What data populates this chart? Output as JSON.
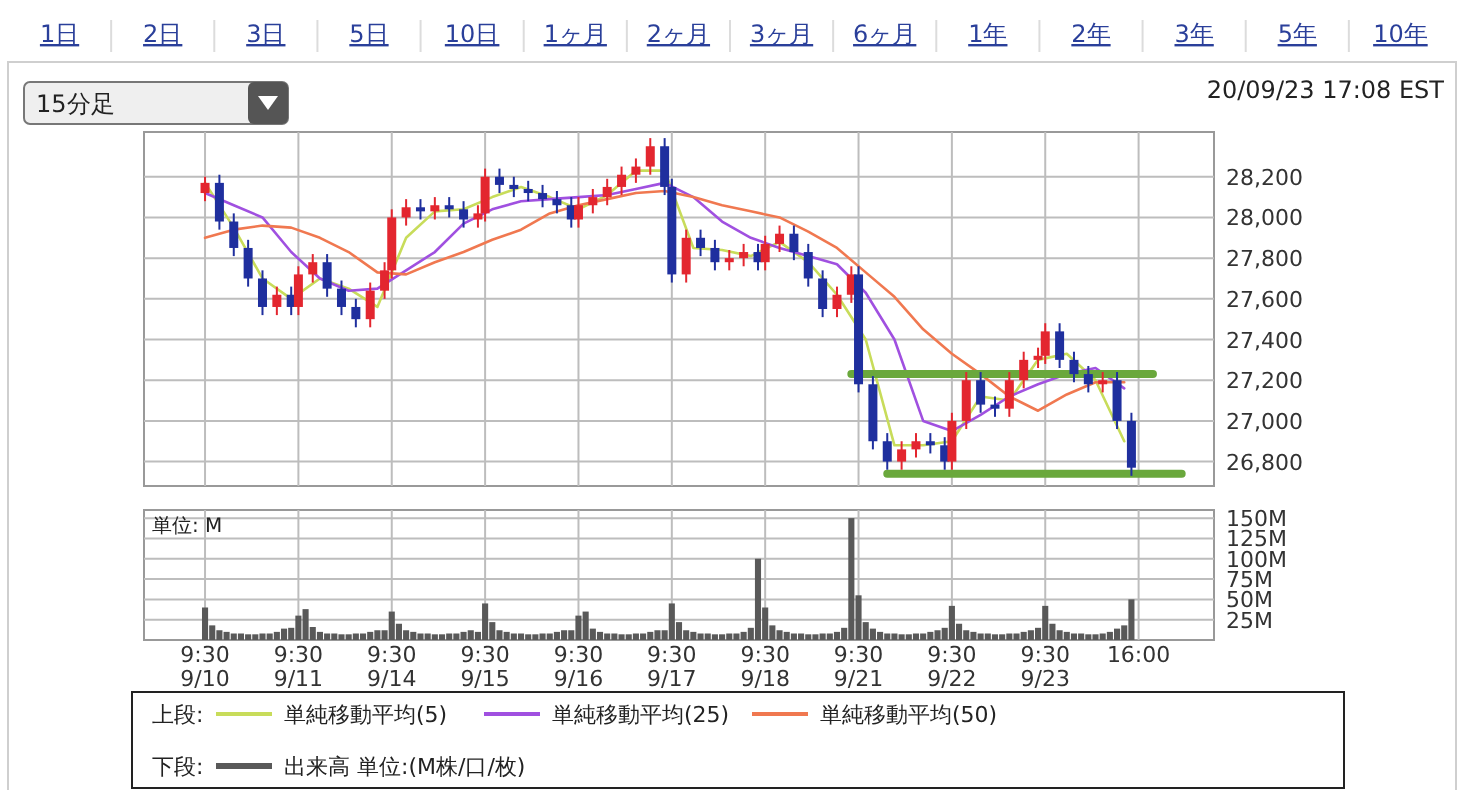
{
  "chart_data": [
    {
      "type": "other",
      "annotations": [
        "1日",
        "2日",
        "3日",
        "5日",
        "10日",
        "1ヶ月",
        "2ヶ月",
        "3ヶ月",
        "6ヶ月",
        "1年",
        "2年",
        "3年",
        "5年",
        "10年",
        "15分足",
        "20/09/23 17:08 EST"
      ]
    },
    {
      "type": "candlestick",
      "ylim": [
        26680,
        28420
      ],
      "grid": true,
      "tick_labels": "y",
      "legend": "bottom",
      "legend_title": "上段:",
      "categories": [
        null,
        null,
        null,
        null,
        null,
        null,
        null,
        null,
        null,
        null,
        null,
        null,
        null,
        null,
        null,
        null,
        null,
        null,
        null,
        null,
        null,
        null,
        null,
        null,
        null,
        null,
        null,
        null,
        null,
        null,
        null,
        null,
        null,
        null,
        null,
        null,
        null,
        null,
        null,
        null,
        null,
        null,
        null,
        null,
        null,
        null,
        null,
        null,
        null,
        null,
        null,
        null,
        null,
        null,
        null,
        null,
        null,
        null,
        null,
        null,
        null,
        null,
        null,
        null,
        null,
        null,
        null,
        null,
        null,
        null,
        null,
        null,
        null,
        null,
        null,
        null,
        null,
        null,
        null,
        null,
        null,
        null,
        null,
        null,
        null,
        null,
        null,
        null,
        null,
        null,
        null,
        null,
        null,
        null,
        null,
        null,
        null,
        null,
        null,
        null,
        null,
        null,
        null,
        null,
        null,
        null,
        null,
        null,
        null,
        null,
        null,
        null,
        null,
        null,
        null,
        null,
        null,
        null,
        null,
        null,
        null,
        null,
        null,
        null,
        null,
        null,
        null,
        null,
        null,
        null,
        null,
        null,
        null,
        null,
        null,
        null,
        null,
        null,
        null,
        null,
        null,
        null,
        null,
        null,
        null,
        null,
        null,
        null,
        null
      ],
      "yticks": [
        {
          "value": 26800,
          "label": "26,800"
        },
        {
          "value": 27000,
          "label": "27,000"
        },
        {
          "value": 27200,
          "label": "27,200"
        },
        {
          "value": 27400,
          "label": "27,400"
        },
        {
          "value": 27600,
          "label": "27,600"
        },
        {
          "value": 27800,
          "label": "27,800"
        },
        {
          "value": 28000,
          "label": "28,000"
        },
        {
          "value": 28200,
          "label": "28,200"
        }
      ],
      "ohlc": [
        null,
        null,
        null,
        null,
        null,
        null,
        null,
        null,
        [
          28120,
          28200,
          28080,
          28170
        ],
        null,
        [
          28170,
          28210,
          27940,
          27980
        ],
        null,
        [
          27980,
          28020,
          27810,
          27850
        ],
        null,
        [
          27850,
          27890,
          27660,
          27700
        ],
        null,
        [
          27700,
          27740,
          27520,
          27560
        ],
        null,
        [
          27560,
          27660,
          27520,
          27620
        ],
        null,
        [
          27620,
          27660,
          27520,
          27560
        ],
        [
          27560,
          27760,
          27520,
          27720
        ],
        null,
        [
          27720,
          27820,
          27680,
          27780
        ],
        null,
        [
          27780,
          27820,
          27610,
          27650
        ],
        null,
        [
          27650,
          27690,
          27520,
          27560
        ],
        null,
        [
          27560,
          27600,
          27460,
          27500
        ],
        null,
        [
          27500,
          27680,
          27460,
          27640
        ],
        null,
        [
          27640,
          27780,
          27600,
          27740
        ],
        [
          27740,
          28040,
          27700,
          28000
        ],
        null,
        [
          28000,
          28090,
          27960,
          28050
        ],
        null,
        [
          28050,
          28090,
          27990,
          28030
        ],
        null,
        [
          28030,
          28100,
          27990,
          28060
        ],
        null,
        [
          28060,
          28100,
          28000,
          28040
        ],
        null,
        [
          28040,
          28080,
          27950,
          27990
        ],
        null,
        [
          27990,
          28060,
          27950,
          28020
        ],
        [
          28020,
          28240,
          27980,
          28200
        ],
        null,
        [
          28200,
          28240,
          28120,
          28160
        ],
        null,
        [
          28160,
          28200,
          28100,
          28140
        ],
        null,
        [
          28140,
          28180,
          28080,
          28120
        ],
        null,
        [
          28120,
          28160,
          28050,
          28090
        ],
        null,
        [
          28090,
          28130,
          28020,
          28060
        ],
        null,
        [
          28060,
          28100,
          27950,
          27990
        ],
        [
          27990,
          28100,
          27950,
          28060
        ],
        null,
        [
          28060,
          28140,
          28020,
          28100
        ],
        null,
        [
          28100,
          28190,
          28060,
          28150
        ],
        null,
        [
          28150,
          28250,
          28110,
          28210
        ],
        null,
        [
          28210,
          28290,
          28170,
          28250
        ],
        null,
        [
          28250,
          28390,
          28210,
          28350
        ],
        null,
        [
          28350,
          28390,
          28110,
          28150
        ],
        [
          28150,
          28190,
          27680,
          27720
        ],
        null,
        [
          27720,
          27940,
          27680,
          27900
        ],
        null,
        [
          27900,
          27940,
          27810,
          27850
        ],
        null,
        [
          27850,
          27890,
          27740,
          27780
        ],
        null,
        [
          27780,
          27840,
          27740,
          27800
        ],
        null,
        [
          27800,
          27870,
          27760,
          27830
        ],
        null,
        [
          27830,
          27870,
          27740,
          27780
        ],
        [
          27780,
          27910,
          27740,
          27870
        ],
        null,
        [
          27870,
          27960,
          27830,
          27920
        ],
        null,
        [
          27920,
          27960,
          27790,
          27830
        ],
        null,
        [
          27830,
          27870,
          27660,
          27700
        ],
        null,
        [
          27700,
          27740,
          27510,
          27550
        ],
        null,
        [
          27550,
          27660,
          27510,
          27620
        ],
        null,
        [
          27620,
          27760,
          27580,
          27720
        ],
        [
          27720,
          27760,
          27140,
          27180
        ],
        null,
        [
          27180,
          27220,
          26860,
          26900
        ],
        null,
        [
          26900,
          26940,
          26760,
          26800
        ],
        null,
        [
          26800,
          26900,
          26760,
          26860
        ],
        null,
        [
          26860,
          26940,
          26820,
          26900
        ],
        null,
        [
          26900,
          26940,
          26840,
          26880
        ],
        null,
        [
          26880,
          26920,
          26760,
          26800
        ],
        [
          26800,
          27040,
          26760,
          27000
        ],
        null,
        [
          27000,
          27240,
          26960,
          27200
        ],
        null,
        [
          27200,
          27240,
          27040,
          27080
        ],
        null,
        [
          27080,
          27120,
          27020,
          27060
        ],
        null,
        [
          27060,
          27240,
          27020,
          27200
        ],
        null,
        [
          27200,
          27340,
          27160,
          27300
        ],
        null,
        [
          27300,
          27360,
          27260,
          27320
        ],
        [
          27320,
          27480,
          27280,
          27440
        ],
        null,
        [
          27440,
          27480,
          27260,
          27300
        ],
        null,
        [
          27300,
          27340,
          27190,
          27230
        ],
        null,
        [
          27230,
          27270,
          27140,
          27180
        ],
        null,
        [
          27180,
          27240,
          27140,
          27200
        ],
        null,
        [
          27200,
          27240,
          26960,
          27000
        ],
        null,
        [
          27000,
          27040,
          26730,
          26770
        ],
        null,
        null,
        null,
        null,
        null,
        null,
        null,
        null,
        null,
        null,
        null
      ],
      "series": [
        {
          "name": "単純移動平均(5)",
          "type": "line",
          "color": "#c8dc5a",
          "values": [
            null,
            null,
            null,
            null,
            null,
            null,
            null,
            null,
            28170,
            null,
            null,
            null,
            27950,
            null,
            null,
            null,
            27700,
            null,
            null,
            null,
            27600,
            null,
            null,
            null,
            27700,
            null,
            null,
            null,
            27650,
            null,
            null,
            null,
            27560,
            null,
            null,
            null,
            27900,
            null,
            null,
            null,
            28030,
            null,
            null,
            null,
            28040,
            null,
            null,
            null,
            28100,
            null,
            null,
            null,
            28150,
            null,
            null,
            null,
            28100,
            null,
            null,
            null,
            28040,
            null,
            null,
            null,
            28110,
            null,
            null,
            null,
            28230,
            null,
            null,
            null,
            28230,
            null,
            null,
            null,
            27850,
            null,
            null,
            null,
            27840,
            null,
            null,
            null,
            27810,
            null,
            null,
            null,
            27880,
            null,
            null,
            null,
            27780,
            null,
            null,
            null,
            27620,
            null,
            null,
            null,
            27400,
            null,
            null,
            null,
            26880,
            null,
            null,
            null,
            26880,
            null,
            null,
            null,
            26900,
            null,
            null,
            null,
            27120,
            null,
            null,
            null,
            27100,
            null,
            null,
            null,
            27300,
            null,
            null,
            null,
            27330,
            null,
            null,
            null,
            27200,
            null,
            null,
            null,
            26900,
            null,
            null,
            null,
            null,
            null,
            null,
            null,
            null,
            null,
            null,
            null,
            null
          ]
        },
        {
          "name": "単純移動平均(25)",
          "type": "line",
          "color": "#a050e0",
          "values": [
            null,
            null,
            null,
            null,
            null,
            null,
            null,
            null,
            28120,
            null,
            null,
            null,
            28060,
            null,
            null,
            null,
            28000,
            null,
            null,
            null,
            27830,
            null,
            null,
            null,
            27700,
            null,
            null,
            null,
            27640,
            null,
            null,
            null,
            27650,
            null,
            null,
            null,
            27740,
            null,
            null,
            null,
            27830,
            null,
            null,
            null,
            27970,
            null,
            null,
            null,
            28040,
            null,
            null,
            null,
            28080,
            null,
            null,
            null,
            28090,
            null,
            null,
            null,
            28100,
            null,
            null,
            null,
            28110,
            null,
            null,
            null,
            28140,
            null,
            null,
            null,
            28170,
            null,
            null,
            null,
            28100,
            null,
            null,
            null,
            27980,
            null,
            null,
            null,
            27900,
            null,
            null,
            null,
            27850,
            null,
            null,
            null,
            27810,
            null,
            null,
            null,
            27770,
            null,
            null,
            null,
            27630,
            null,
            null,
            null,
            27400,
            null,
            null,
            null,
            27000,
            null,
            null,
            null,
            26950,
            null,
            null,
            null,
            27030,
            null,
            null,
            null,
            27120,
            null,
            null,
            null,
            27180,
            null,
            null,
            null,
            27230,
            null,
            null,
            null,
            27260,
            null,
            null,
            null,
            27160,
            null,
            null,
            null,
            null,
            null,
            null,
            null,
            null,
            null,
            null,
            null,
            null
          ]
        },
        {
          "name": "単純移動平均(50)",
          "type": "line",
          "color": "#f07850",
          "values": [
            null,
            null,
            null,
            null,
            null,
            null,
            null,
            null,
            27900,
            null,
            null,
            null,
            27940,
            null,
            null,
            null,
            27960,
            null,
            null,
            null,
            27950,
            null,
            null,
            null,
            27900,
            null,
            null,
            null,
            27830,
            null,
            null,
            null,
            27730,
            null,
            null,
            null,
            27720,
            null,
            null,
            null,
            27780,
            null,
            null,
            null,
            27830,
            null,
            null,
            null,
            27890,
            null,
            null,
            null,
            27940,
            null,
            null,
            null,
            28020,
            null,
            null,
            null,
            28060,
            null,
            null,
            null,
            28090,
            null,
            null,
            null,
            28120,
            null,
            null,
            null,
            28130,
            null,
            null,
            null,
            28100,
            null,
            null,
            null,
            28060,
            null,
            null,
            null,
            28030,
            null,
            null,
            null,
            28000,
            null,
            null,
            null,
            27930,
            null,
            null,
            null,
            27850,
            null,
            null,
            null,
            27730,
            null,
            null,
            null,
            27610,
            null,
            null,
            null,
            27450,
            null,
            null,
            null,
            27330,
            null,
            null,
            null,
            27230,
            null,
            null,
            null,
            27120,
            null,
            null,
            null,
            27050,
            null,
            null,
            null,
            27130,
            null,
            null,
            null,
            27190,
            null,
            null,
            null,
            27190,
            null,
            null,
            null,
            null,
            null,
            null,
            null,
            null,
            null,
            null,
            null,
            null
          ]
        },
        {
          "type": "line",
          "color": "#6aa83c",
          "values": [
            null,
            null,
            null,
            null,
            null,
            null,
            null,
            null,
            null,
            null,
            null,
            null,
            null,
            null,
            null,
            null,
            null,
            null,
            null,
            null,
            null,
            null,
            null,
            null,
            null,
            null,
            null,
            null,
            null,
            null,
            null,
            null,
            null,
            null,
            null,
            null,
            null,
            null,
            null,
            null,
            null,
            null,
            null,
            null,
            null,
            null,
            null,
            null,
            null,
            null,
            null,
            null,
            null,
            null,
            null,
            null,
            null,
            null,
            null,
            null,
            null,
            null,
            null,
            null,
            null,
            null,
            null,
            null,
            null,
            null,
            null,
            null,
            null,
            null,
            null,
            null,
            null,
            null,
            null,
            null,
            null,
            null,
            null,
            null,
            null,
            null,
            null,
            null,
            null,
            null,
            null,
            null,
            null,
            null,
            null,
            null,
            null,
            null,
            27230,
            null,
            null,
            null,
            null,
            null,
            null,
            null,
            null,
            null,
            null,
            null,
            null,
            null,
            null,
            null,
            null,
            null,
            null,
            null,
            null,
            null,
            null,
            null,
            null,
            null,
            null,
            null,
            null,
            null,
            null,
            null,
            null,
            null,
            null,
            null,
            null,
            null,
            null,
            null,
            null,
            null,
            27230,
            null,
            null,
            null,
            null,
            null,
            null,
            null,
            null
          ]
        },
        {
          "type": "line",
          "color": "#6aa83c",
          "values": [
            null,
            null,
            null,
            null,
            null,
            null,
            null,
            null,
            null,
            null,
            null,
            null,
            null,
            null,
            null,
            null,
            null,
            null,
            null,
            null,
            null,
            null,
            null,
            null,
            null,
            null,
            null,
            null,
            null,
            null,
            null,
            null,
            null,
            null,
            null,
            null,
            null,
            null,
            null,
            null,
            null,
            null,
            null,
            null,
            null,
            null,
            null,
            null,
            null,
            null,
            null,
            null,
            null,
            null,
            null,
            null,
            null,
            null,
            null,
            null,
            null,
            null,
            null,
            null,
            null,
            null,
            null,
            null,
            null,
            null,
            null,
            null,
            null,
            null,
            null,
            null,
            null,
            null,
            null,
            null,
            null,
            null,
            null,
            null,
            null,
            null,
            null,
            null,
            null,
            null,
            null,
            null,
            null,
            null,
            null,
            null,
            null,
            null,
            null,
            null,
            null,
            null,
            null,
            26740,
            null,
            null,
            null,
            null,
            null,
            null,
            null,
            null,
            null,
            null,
            null,
            null,
            null,
            null,
            null,
            null,
            null,
            null,
            null,
            null,
            null,
            null,
            null,
            null,
            null,
            null,
            null,
            null,
            null,
            null,
            null,
            null,
            null,
            null,
            null,
            null,
            null,
            null,
            null,
            null,
            26740,
            null,
            null,
            null,
            null
          ]
        }
      ]
    },
    {
      "type": "bar",
      "ylim": [
        0,
        160
      ],
      "grid": true,
      "legend": "bottom",
      "legend_title": "下段:",
      "annotations": [
        "単位: M"
      ],
      "categories": [
        null,
        null,
        null,
        null,
        null,
        null,
        null,
        null,
        "9:30\n9/10",
        null,
        null,
        null,
        null,
        null,
        null,
        null,
        null,
        null,
        null,
        null,
        null,
        "9:30\n9/11",
        null,
        null,
        null,
        null,
        null,
        null,
        null,
        null,
        null,
        null,
        null,
        null,
        "9:30\n9/14",
        null,
        null,
        null,
        null,
        null,
        null,
        null,
        null,
        null,
        null,
        null,
        null,
        "9:30\n9/15",
        null,
        null,
        null,
        null,
        null,
        null,
        null,
        null,
        null,
        null,
        null,
        null,
        "9:30\n9/16",
        null,
        null,
        null,
        null,
        null,
        null,
        null,
        null,
        null,
        null,
        null,
        null,
        "9:30\n9/17",
        null,
        null,
        null,
        null,
        null,
        null,
        null,
        null,
        null,
        null,
        null,
        null,
        "9:30\n9/18",
        null,
        null,
        null,
        null,
        null,
        null,
        null,
        null,
        null,
        null,
        null,
        null,
        "9:30\n9/21",
        null,
        null,
        null,
        null,
        null,
        null,
        null,
        null,
        null,
        null,
        null,
        null,
        "9:30\n9/22",
        null,
        null,
        null,
        null,
        null,
        null,
        null,
        null,
        null,
        null,
        null,
        null,
        "9:30\n9/23",
        null,
        null,
        null,
        null,
        null,
        null,
        null,
        null,
        null,
        null,
        null,
        null,
        "16:00",
        null,
        null,
        null,
        null,
        null,
        null,
        null,
        null,
        null,
        null
      ],
      "yticks": [
        {
          "value": 25,
          "label": "25M"
        },
        {
          "value": 50,
          "label": "50M"
        },
        {
          "value": 75,
          "label": "75M"
        },
        {
          "value": 100,
          "label": "100M"
        },
        {
          "value": 125,
          "label": "125M"
        },
        {
          "value": 150,
          "label": "150M"
        }
      ],
      "series": [
        {
          "name": "出来高 単位:(M株/口/枚)",
          "color": "#595959",
          "values": [
            null,
            null,
            null,
            null,
            null,
            null,
            null,
            null,
            40,
            18,
            12,
            10,
            8,
            8,
            7,
            7,
            8,
            8,
            10,
            14,
            15,
            30,
            38,
            16,
            10,
            8,
            8,
            7,
            7,
            8,
            8,
            10,
            12,
            12,
            35,
            20,
            12,
            10,
            8,
            8,
            7,
            7,
            8,
            8,
            10,
            12,
            10,
            45,
            22,
            12,
            10,
            8,
            8,
            7,
            7,
            8,
            8,
            10,
            12,
            12,
            30,
            35,
            14,
            10,
            8,
            8,
            7,
            7,
            8,
            8,
            10,
            12,
            12,
            45,
            22,
            12,
            10,
            8,
            8,
            7,
            7,
            8,
            8,
            10,
            15,
            100,
            40,
            18,
            12,
            10,
            8,
            8,
            7,
            7,
            8,
            8,
            10,
            15,
            150,
            55,
            22,
            14,
            10,
            8,
            8,
            7,
            7,
            8,
            8,
            10,
            12,
            15,
            42,
            20,
            12,
            10,
            8,
            8,
            7,
            7,
            8,
            8,
            10,
            12,
            15,
            42,
            20,
            12,
            10,
            8,
            8,
            7,
            7,
            8,
            10,
            14,
            18,
            50,
            null,
            null,
            null,
            null,
            null,
            null,
            null,
            null,
            null,
            null,
            null
          ]
        }
      ]
    }
  ]
}
